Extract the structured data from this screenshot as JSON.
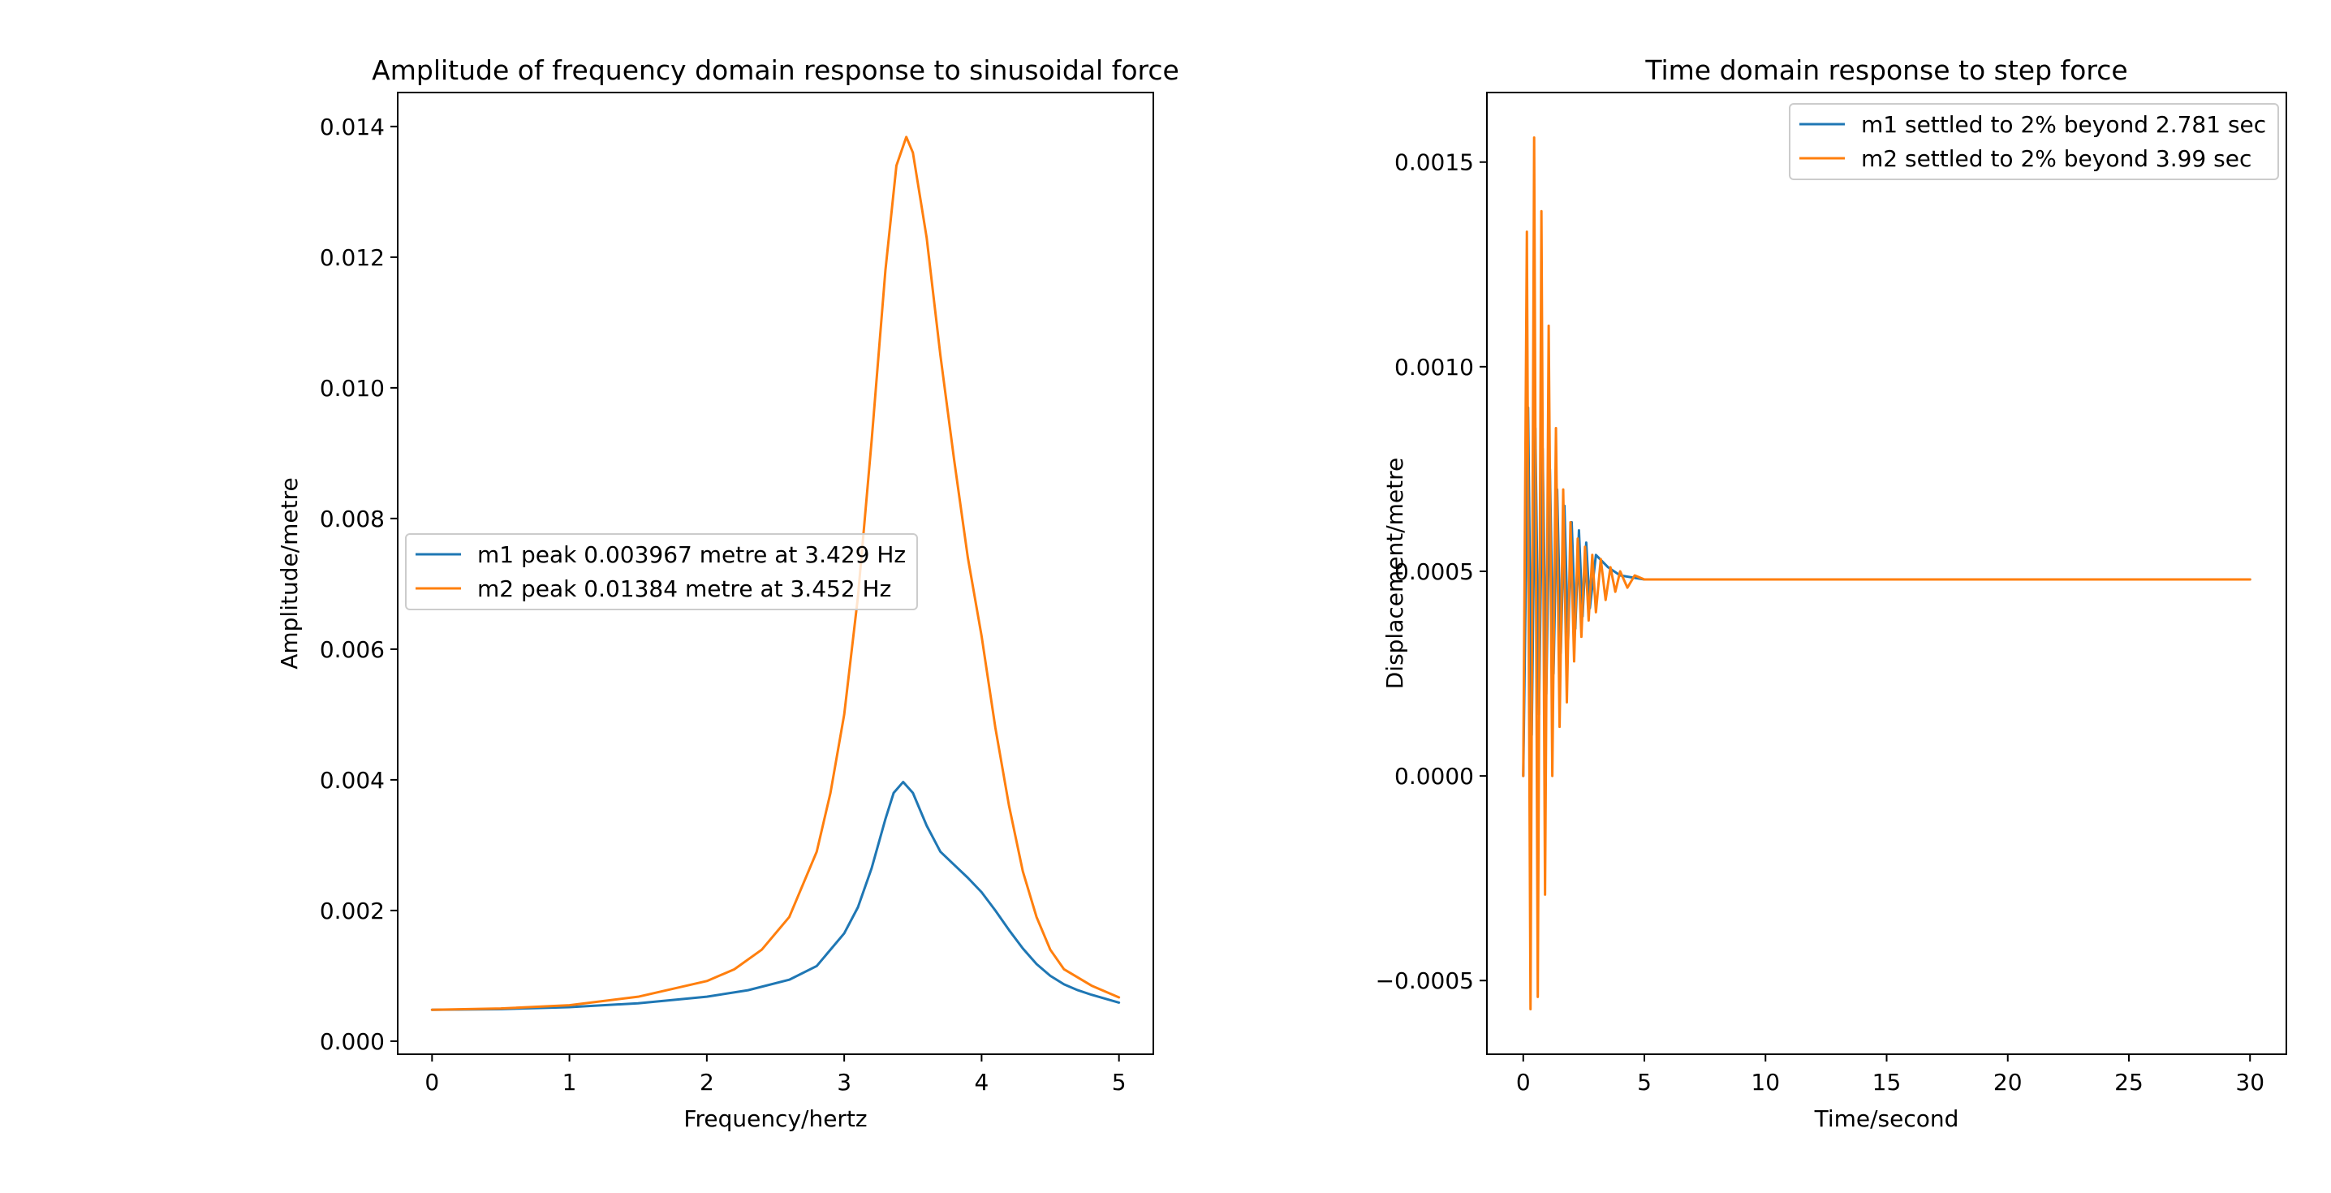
{
  "chart_data": [
    {
      "type": "line",
      "title": "Amplitude of frequency domain response to sinusoidal force",
      "xlabel": "Frequency/hertz",
      "ylabel": "Amplitude/metre",
      "xlim": [
        -0.25,
        5.25
      ],
      "ylim": [
        -0.0002,
        0.01452
      ],
      "xticks": [
        0,
        1,
        2,
        3,
        4,
        5
      ],
      "xtick_labels": [
        "0",
        "1",
        "2",
        "3",
        "4",
        "5"
      ],
      "yticks": [
        0.0,
        0.002,
        0.004,
        0.006,
        0.008,
        0.01,
        0.012,
        0.014
      ],
      "ytick_labels": [
        "0.000",
        "0.002",
        "0.004",
        "0.006",
        "0.008",
        "0.010",
        "0.012",
        "0.014"
      ],
      "grid": false,
      "legend_position": "center-left",
      "series": [
        {
          "name": "m1 peak 0.003967 metre at 3.429 Hz",
          "color": "#1f77b4",
          "x": [
            0,
            0.5,
            1.0,
            1.5,
            2.0,
            2.3,
            2.6,
            2.8,
            3.0,
            3.1,
            3.2,
            3.3,
            3.36,
            3.429,
            3.5,
            3.6,
            3.7,
            3.8,
            3.9,
            4.0,
            4.1,
            4.2,
            4.3,
            4.4,
            4.5,
            4.6,
            4.7,
            4.8,
            5.0
          ],
          "y": [
            0.00048,
            0.00049,
            0.00052,
            0.00058,
            0.00068,
            0.00078,
            0.00094,
            0.00115,
            0.00165,
            0.00205,
            0.00265,
            0.0034,
            0.0038,
            0.003967,
            0.0038,
            0.0033,
            0.0029,
            0.0027,
            0.0025,
            0.00228,
            0.002,
            0.0017,
            0.00142,
            0.00118,
            0.001,
            0.00087,
            0.00078,
            0.00071,
            0.00059
          ]
        },
        {
          "name": "m2 peak 0.01384 metre at 3.452 Hz",
          "color": "#ff7f0e",
          "x": [
            0,
            0.5,
            1.0,
            1.5,
            2.0,
            2.2,
            2.4,
            2.6,
            2.8,
            2.9,
            3.0,
            3.1,
            3.2,
            3.3,
            3.38,
            3.452,
            3.5,
            3.6,
            3.7,
            3.8,
            3.9,
            4.0,
            4.1,
            4.2,
            4.3,
            4.4,
            4.5,
            4.6,
            4.8,
            5.0
          ],
          "y": [
            0.00048,
            0.0005,
            0.00055,
            0.00068,
            0.00092,
            0.0011,
            0.0014,
            0.0019,
            0.0029,
            0.0038,
            0.005,
            0.0068,
            0.0092,
            0.0118,
            0.0134,
            0.01384,
            0.0136,
            0.0123,
            0.0105,
            0.0089,
            0.0074,
            0.0062,
            0.0048,
            0.0036,
            0.0026,
            0.0019,
            0.0014,
            0.0011,
            0.00085,
            0.00067
          ]
        }
      ]
    },
    {
      "type": "line",
      "title": "Time domain response to step force",
      "xlabel": "Time/second",
      "ylabel": "Displacement/metre",
      "xlim": [
        -1.5,
        31.5
      ],
      "ylim": [
        -0.00068,
        0.00167
      ],
      "xticks": [
        0,
        5,
        10,
        15,
        20,
        25,
        30
      ],
      "xtick_labels": [
        "0",
        "5",
        "10",
        "15",
        "20",
        "25",
        "30"
      ],
      "yticks": [
        -0.0005,
        0.0,
        0.0005,
        0.001,
        0.0015
      ],
      "ytick_labels": [
        "−0.0005",
        "0.0000",
        "0.0005",
        "0.0010",
        "0.0015"
      ],
      "grid": false,
      "legend_position": "top-right",
      "series": [
        {
          "name": "m1 settled to 2% beyond 2.781 sec",
          "color": "#1f77b4",
          "x": [
            0,
            0.2,
            0.35,
            0.5,
            0.65,
            0.8,
            0.95,
            1.1,
            1.25,
            1.4,
            1.55,
            1.7,
            1.85,
            2.0,
            2.15,
            2.3,
            2.45,
            2.6,
            2.75,
            3.0,
            3.5,
            4.0,
            5.0,
            6.0,
            10.0,
            20.0,
            30.0
          ],
          "y": [
            0.0,
            0.0009,
            0.0001,
            0.00085,
            0.00015,
            0.0008,
            0.0002,
            0.00075,
            0.00025,
            0.0007,
            0.0003,
            0.00066,
            0.00033,
            0.00062,
            0.00036,
            0.0006,
            0.00039,
            0.00057,
            0.00041,
            0.00054,
            0.00051,
            0.00049,
            0.00048,
            0.00048,
            0.00048,
            0.00048,
            0.00048
          ]
        },
        {
          "name": "m2 settled to 2% beyond 3.99 sec",
          "color": "#ff7f0e",
          "x": [
            0,
            0.15,
            0.3,
            0.45,
            0.6,
            0.75,
            0.9,
            1.05,
            1.2,
            1.35,
            1.5,
            1.65,
            1.8,
            1.95,
            2.1,
            2.25,
            2.4,
            2.55,
            2.7,
            2.85,
            3.0,
            3.2,
            3.4,
            3.6,
            3.8,
            4.0,
            4.3,
            4.6,
            5.0,
            6.0,
            10.0,
            20.0,
            30.0
          ],
          "y": [
            0.0,
            0.00133,
            -0.00057,
            0.00156,
            -0.00054,
            0.00138,
            -0.00029,
            0.0011,
            0.0,
            0.00085,
            0.00012,
            0.0007,
            0.00018,
            0.00062,
            0.00028,
            0.00058,
            0.00034,
            0.00056,
            0.00038,
            0.00054,
            0.0004,
            0.00053,
            0.00043,
            0.00051,
            0.00045,
            0.0005,
            0.00046,
            0.00049,
            0.00048,
            0.00048,
            0.00048,
            0.00048,
            0.00048
          ]
        }
      ]
    }
  ]
}
